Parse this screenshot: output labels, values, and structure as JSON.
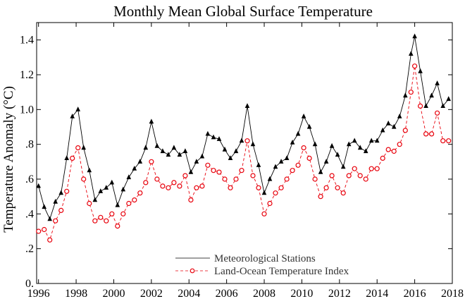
{
  "chart_data": {
    "type": "line",
    "title": "Monthly Mean Global Surface Temperature",
    "ylabel": "Temperature Anomaly (°C)",
    "xlabel": "",
    "xlim": [
      1995.9,
      2018.0
    ],
    "ylim": [
      0.0,
      1.5
    ],
    "x_ticks": [
      1996,
      1998,
      2000,
      2002,
      2004,
      2006,
      2008,
      2010,
      2012,
      2014,
      2016,
      2018
    ],
    "x_tick_labels": [
      "1996",
      "1998",
      "2000",
      "2002",
      "2004",
      "2006",
      "2008",
      "2010",
      "2012",
      "2014",
      "2016",
      "2018"
    ],
    "y_ticks": [
      0.0,
      0.2,
      0.4,
      0.6,
      0.8,
      1.0,
      1.2,
      1.4
    ],
    "y_tick_labels": [
      "0.",
      ".2",
      ".4",
      ".6",
      ".8",
      "1.0",
      "1.2",
      "1.4"
    ],
    "grid": false,
    "legend_position": "bottom-center",
    "series": [
      {
        "name": "Meteorological Stations",
        "style": "solid line with triangle markers",
        "color": "#000000",
        "points": [
          [
            1996.0,
            0.56
          ],
          [
            1996.3,
            0.44
          ],
          [
            1996.6,
            0.37
          ],
          [
            1996.9,
            0.47
          ],
          [
            1997.2,
            0.52
          ],
          [
            1997.5,
            0.72
          ],
          [
            1997.8,
            0.96
          ],
          [
            1998.1,
            1.0
          ],
          [
            1998.4,
            0.78
          ],
          [
            1998.7,
            0.65
          ],
          [
            1999.0,
            0.48
          ],
          [
            1999.3,
            0.53
          ],
          [
            1999.6,
            0.55
          ],
          [
            1999.9,
            0.58
          ],
          [
            2000.2,
            0.45
          ],
          [
            2000.5,
            0.54
          ],
          [
            2000.8,
            0.61
          ],
          [
            2001.1,
            0.66
          ],
          [
            2001.4,
            0.7
          ],
          [
            2001.7,
            0.78
          ],
          [
            2002.0,
            0.93
          ],
          [
            2002.3,
            0.79
          ],
          [
            2002.6,
            0.76
          ],
          [
            2002.9,
            0.74
          ],
          [
            2003.2,
            0.78
          ],
          [
            2003.5,
            0.74
          ],
          [
            2003.8,
            0.76
          ],
          [
            2004.1,
            0.64
          ],
          [
            2004.4,
            0.7
          ],
          [
            2004.7,
            0.73
          ],
          [
            2005.0,
            0.86
          ],
          [
            2005.3,
            0.84
          ],
          [
            2005.6,
            0.83
          ],
          [
            2005.9,
            0.77
          ],
          [
            2006.2,
            0.72
          ],
          [
            2006.5,
            0.76
          ],
          [
            2006.8,
            0.82
          ],
          [
            2007.1,
            1.02
          ],
          [
            2007.4,
            0.8
          ],
          [
            2007.7,
            0.68
          ],
          [
            2008.0,
            0.52
          ],
          [
            2008.3,
            0.6
          ],
          [
            2008.6,
            0.67
          ],
          [
            2008.9,
            0.7
          ],
          [
            2009.2,
            0.72
          ],
          [
            2009.5,
            0.81
          ],
          [
            2009.8,
            0.86
          ],
          [
            2010.1,
            0.96
          ],
          [
            2010.4,
            0.9
          ],
          [
            2010.7,
            0.8
          ],
          [
            2011.0,
            0.64
          ],
          [
            2011.3,
            0.7
          ],
          [
            2011.6,
            0.79
          ],
          [
            2011.9,
            0.74
          ],
          [
            2012.2,
            0.67
          ],
          [
            2012.5,
            0.8
          ],
          [
            2012.8,
            0.82
          ],
          [
            2013.1,
            0.78
          ],
          [
            2013.4,
            0.76
          ],
          [
            2013.7,
            0.82
          ],
          [
            2014.0,
            0.82
          ],
          [
            2014.3,
            0.88
          ],
          [
            2014.6,
            0.92
          ],
          [
            2014.9,
            0.9
          ],
          [
            2015.2,
            0.96
          ],
          [
            2015.5,
            1.08
          ],
          [
            2015.8,
            1.32
          ],
          [
            2016.0,
            1.42
          ],
          [
            2016.3,
            1.22
          ],
          [
            2016.6,
            1.02
          ],
          [
            2016.9,
            1.08
          ],
          [
            2017.2,
            1.15
          ],
          [
            2017.5,
            1.02
          ],
          [
            2017.8,
            1.06
          ]
        ]
      },
      {
        "name": "Land-Ocean Temperature Index",
        "style": "dashed line with circle markers",
        "color": "#e8000b",
        "points": [
          [
            1996.0,
            0.3
          ],
          [
            1996.3,
            0.31
          ],
          [
            1996.6,
            0.25
          ],
          [
            1996.9,
            0.36
          ],
          [
            1997.2,
            0.42
          ],
          [
            1997.5,
            0.53
          ],
          [
            1997.8,
            0.72
          ],
          [
            1998.1,
            0.78
          ],
          [
            1998.4,
            0.6
          ],
          [
            1998.7,
            0.46
          ],
          [
            1999.0,
            0.36
          ],
          [
            1999.3,
            0.38
          ],
          [
            1999.6,
            0.36
          ],
          [
            1999.9,
            0.4
          ],
          [
            2000.2,
            0.33
          ],
          [
            2000.5,
            0.4
          ],
          [
            2000.8,
            0.46
          ],
          [
            2001.1,
            0.48
          ],
          [
            2001.4,
            0.52
          ],
          [
            2001.7,
            0.58
          ],
          [
            2002.0,
            0.7
          ],
          [
            2002.3,
            0.6
          ],
          [
            2002.6,
            0.56
          ],
          [
            2002.9,
            0.55
          ],
          [
            2003.2,
            0.58
          ],
          [
            2003.5,
            0.56
          ],
          [
            2003.8,
            0.62
          ],
          [
            2004.1,
            0.48
          ],
          [
            2004.4,
            0.55
          ],
          [
            2004.7,
            0.56
          ],
          [
            2005.0,
            0.68
          ],
          [
            2005.3,
            0.65
          ],
          [
            2005.6,
            0.64
          ],
          [
            2005.9,
            0.6
          ],
          [
            2006.2,
            0.55
          ],
          [
            2006.5,
            0.6
          ],
          [
            2006.8,
            0.65
          ],
          [
            2007.1,
            0.82
          ],
          [
            2007.4,
            0.62
          ],
          [
            2007.7,
            0.55
          ],
          [
            2008.0,
            0.4
          ],
          [
            2008.3,
            0.46
          ],
          [
            2008.6,
            0.52
          ],
          [
            2008.9,
            0.55
          ],
          [
            2009.2,
            0.6
          ],
          [
            2009.5,
            0.65
          ],
          [
            2009.8,
            0.68
          ],
          [
            2010.1,
            0.78
          ],
          [
            2010.4,
            0.72
          ],
          [
            2010.7,
            0.6
          ],
          [
            2011.0,
            0.5
          ],
          [
            2011.3,
            0.55
          ],
          [
            2011.6,
            0.62
          ],
          [
            2011.9,
            0.55
          ],
          [
            2012.2,
            0.52
          ],
          [
            2012.5,
            0.62
          ],
          [
            2012.8,
            0.66
          ],
          [
            2013.1,
            0.62
          ],
          [
            2013.4,
            0.6
          ],
          [
            2013.7,
            0.66
          ],
          [
            2014.0,
            0.66
          ],
          [
            2014.3,
            0.72
          ],
          [
            2014.6,
            0.77
          ],
          [
            2014.9,
            0.76
          ],
          [
            2015.2,
            0.8
          ],
          [
            2015.5,
            0.88
          ],
          [
            2015.8,
            1.1
          ],
          [
            2016.0,
            1.25
          ],
          [
            2016.3,
            1.02
          ],
          [
            2016.6,
            0.86
          ],
          [
            2016.9,
            0.86
          ],
          [
            2017.2,
            0.98
          ],
          [
            2017.5,
            0.82
          ],
          [
            2017.8,
            0.82
          ]
        ]
      }
    ]
  }
}
